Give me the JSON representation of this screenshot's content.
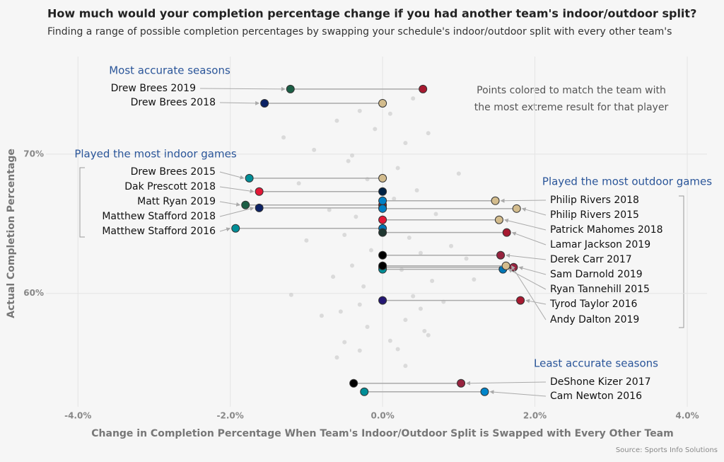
{
  "chart_data": {
    "type": "dumbbell",
    "title": "How much would your completion percentage change if you had another team's indoor/outdoor split?",
    "subtitle": "Finding a range of possible completion percentages by swapping your schedule's indoor/outdoor split with every other team's",
    "x_label": "Change in Completion Percentage When Team's Indoor/Outdoor Split is Swapped with Every Other Team",
    "y_label": "Actual Completion Percentage",
    "source": "Source: Sports Info Solutions",
    "note": [
      "Points colored to match the team with",
      "the most extreme result for that player"
    ],
    "group_labels": [
      "Most accurate seasons",
      "Played the most indoor games",
      "Played the most outdoor games",
      "Least accurate seasons"
    ],
    "xlim": [
      -4.42,
      4.26
    ],
    "xticks": [
      {
        "value": -4,
        "label": "-4.0%"
      },
      {
        "value": -2,
        "label": "-2.0%"
      },
      {
        "value": 0,
        "label": "0.0%"
      },
      {
        "value": 2,
        "label": "2.0%"
      },
      {
        "value": 4,
        "label": "4.0%"
      }
    ],
    "ylim": [
      51.86,
      77.0
    ],
    "yticks": [
      {
        "value": 60,
        "label": "60%"
      },
      {
        "value": 70,
        "label": "70%"
      }
    ],
    "grid": true,
    "players": [
      {
        "name": "Drew Brees 2019",
        "y": 74.67,
        "x": [
          -1.21,
          0.53
        ],
        "colors": [
          "#1b5e45",
          "#a71930"
        ]
      },
      {
        "name": "Drew Brees 2018",
        "y": 73.65,
        "x": [
          -1.55,
          0
        ],
        "colors": [
          "#0b2265",
          "#d3bc8d"
        ]
      },
      {
        "name": "Drew Brees 2015",
        "y": 68.27,
        "x": [
          -1.75,
          0
        ],
        "colors": [
          "#008e97",
          "#d3bc8d"
        ]
      },
      {
        "name": "Dak Prescott 2018",
        "y": 67.31,
        "x": [
          -1.62,
          0
        ],
        "colors": [
          "#e31837",
          "#002244"
        ]
      },
      {
        "name": "Matt Ryan 2019",
        "y": 66.35,
        "x": [
          -1.8,
          0
        ],
        "colors": [
          "#1b5e45",
          "#a71930"
        ]
      },
      {
        "name": "Matthew Stafford 2018",
        "y": 66.14,
        "x": [
          -1.62,
          0
        ],
        "colors": [
          "#0b2265",
          "#0076b6"
        ]
      },
      {
        "name": "Matthew Stafford 2016",
        "y": 64.67,
        "x": [
          -1.93,
          0
        ],
        "colors": [
          "#008e97",
          "#0076b6"
        ]
      },
      {
        "name": "Philip Rivers 2018",
        "y": 66.65,
        "x": [
          0,
          1.48
        ],
        "colors": [
          "#0080c6",
          "#d3bc8d"
        ]
      },
      {
        "name": "Philip Rivers 2015",
        "y": 66.09,
        "x": [
          0,
          1.76
        ],
        "colors": [
          "#0080c6",
          "#d3bc8d"
        ]
      },
      {
        "name": "Patrick Mahomes 2018",
        "y": 65.28,
        "x": [
          0,
          1.53
        ],
        "colors": [
          "#e31837",
          "#d3bc8d"
        ]
      },
      {
        "name": "Lamar Jackson 2019",
        "y": 64.37,
        "x": [
          0,
          1.63
        ],
        "colors": [
          "#203731",
          "#a71930"
        ]
      },
      {
        "name": "Derek Carr 2017",
        "y": 62.74,
        "x": [
          0,
          1.55
        ],
        "colors": [
          "#000000",
          "#97233f"
        ]
      },
      {
        "name": "Sam Darnold 2019",
        "y": 61.88,
        "x": [
          0,
          1.72
        ],
        "colors": [
          "#125740",
          "#97233f"
        ]
      },
      {
        "name": "Ryan Tannehill 2015",
        "y": 61.73,
        "x": [
          0,
          1.58
        ],
        "colors": [
          "#008e97",
          "#0076b6"
        ]
      },
      {
        "name": "Tyrod Taylor 2016",
        "y": 59.5,
        "x": [
          0,
          1.81
        ],
        "colors": [
          "#241773",
          "#a71930"
        ]
      },
      {
        "name": "Andy Dalton 2019",
        "y": 61.98,
        "x": [
          0,
          1.62
        ],
        "colors": [
          "#000000",
          "#d3bc8d"
        ]
      },
      {
        "name": "DeShone Kizer 2017",
        "y": 53.55,
        "x": [
          -0.38,
          1.03
        ],
        "colors": [
          "#000000",
          "#97233f"
        ]
      },
      {
        "name": "Cam Newton 2016",
        "y": 52.94,
        "x": [
          -0.24,
          1.34
        ],
        "colors": [
          "#008e97",
          "#0085ca"
        ]
      }
    ],
    "background": {
      "color": "#c8c8c8",
      "x": [
        -1.3,
        -0.9,
        -0.6,
        -0.45,
        -0.3,
        -0.2,
        -0.1,
        0.1,
        0.2,
        0.3,
        0.45,
        0.6,
        -0.7,
        -0.5,
        -0.35,
        -0.15,
        0.15,
        0.35,
        0.5,
        0.7,
        -1.0,
        -0.65,
        -0.4,
        -0.25,
        0.25,
        0.4,
        0.65,
        0.9,
        1.1,
        -0.55,
        -0.3,
        0.3,
        0.55,
        -1.2,
        -0.8,
        0.8,
        1.2,
        -0.5,
        -0.2,
        0.2,
        0.5,
        -0.6,
        0.6,
        -0.3,
        0.3,
        -1.1,
        1.0,
        -0.4,
        0.4,
        0.1
      ],
      "y": [
        71.2,
        70.3,
        72.4,
        69.5,
        73.1,
        68.2,
        71.8,
        72.9,
        69.0,
        70.8,
        67.4,
        71.5,
        66.0,
        64.2,
        65.5,
        63.1,
        66.8,
        64.0,
        62.9,
        65.7,
        63.8,
        61.2,
        62.0,
        60.5,
        61.7,
        59.8,
        60.9,
        63.4,
        62.5,
        58.7,
        59.2,
        58.1,
        57.3,
        59.9,
        58.4,
        59.4,
        61.0,
        56.5,
        57.6,
        56.0,
        58.9,
        55.4,
        57.0,
        55.9,
        54.8,
        67.9,
        68.6,
        69.9,
        74.0,
        56.6
      ]
    }
  }
}
